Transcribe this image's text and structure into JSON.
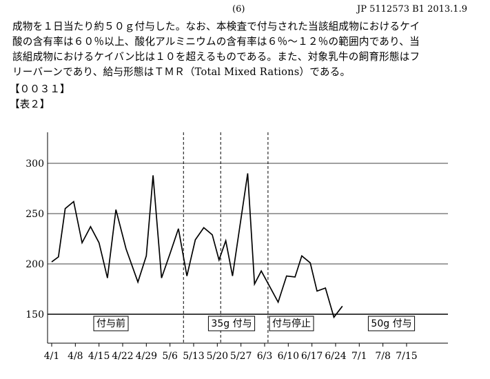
{
  "header": {
    "page_number": "(6)",
    "publication_id": "JP 5112573 B1 2013.1.9"
  },
  "body": {
    "lines": [
      "成物を１日当たり約５０ｇ付与した。なお、本検査で付与された当該組成物におけるケイ",
      "酸の含有率は６０％以上、酸化アルミニウムの含有率は６％～１２％の範囲内であり、当",
      "該組成物におけるケイバン比は１０を超えるものである。また、対象乳牛の飼育形態はフ",
      "リーバーンであり、給与形態はＴＭＲ（Total Mixed Rations）である。"
    ],
    "paragraph_number": "【００３１】",
    "table_label": "【表２】"
  },
  "chart_data": {
    "type": "line",
    "x_tick_labels": [
      "4/1",
      "4/8",
      "4/15",
      "4/22",
      "4/29",
      "5/6",
      "5/13",
      "5/20",
      "5/27",
      "6/3",
      "6/10",
      "6/17",
      "6/24",
      "7/1",
      "7/8",
      "7/15"
    ],
    "y_ticks": [
      150,
      200,
      250,
      300
    ],
    "ylim": [
      120,
      330
    ],
    "x_range_days": [
      0,
      109
    ],
    "grid": "horizontal",
    "series": [
      {
        "points": [
          [
            0,
            202
          ],
          [
            2,
            207
          ],
          [
            4,
            255
          ],
          [
            6.5,
            262
          ],
          [
            9,
            221
          ],
          [
            11.5,
            237
          ],
          [
            14,
            221
          ],
          [
            16.5,
            186
          ],
          [
            19,
            254
          ],
          [
            22,
            215
          ],
          [
            25.5,
            182
          ],
          [
            28,
            208
          ],
          [
            30,
            288
          ],
          [
            32.5,
            186
          ],
          [
            35,
            210
          ],
          [
            37.5,
            235
          ],
          [
            40,
            188
          ],
          [
            42.5,
            224
          ],
          [
            45,
            236
          ],
          [
            47.5,
            229
          ],
          [
            49.5,
            204
          ],
          [
            51.5,
            223
          ],
          [
            53.5,
            188
          ],
          [
            58,
            290
          ],
          [
            60,
            180
          ],
          [
            62,
            193
          ],
          [
            67,
            162
          ],
          [
            69.5,
            188
          ],
          [
            72,
            187
          ],
          [
            74,
            208
          ],
          [
            76.5,
            201
          ],
          [
            78.5,
            173
          ],
          [
            81,
            176
          ],
          [
            83.5,
            147
          ],
          [
            86,
            158
          ]
        ]
      }
    ],
    "phase_dividers_days": [
      39,
      50,
      64
    ],
    "periods": [
      {
        "label": "付与前"
      },
      {
        "label": "35g 付与"
      },
      {
        "label": "付与停止"
      },
      {
        "label": "50g 付与"
      }
    ]
  }
}
